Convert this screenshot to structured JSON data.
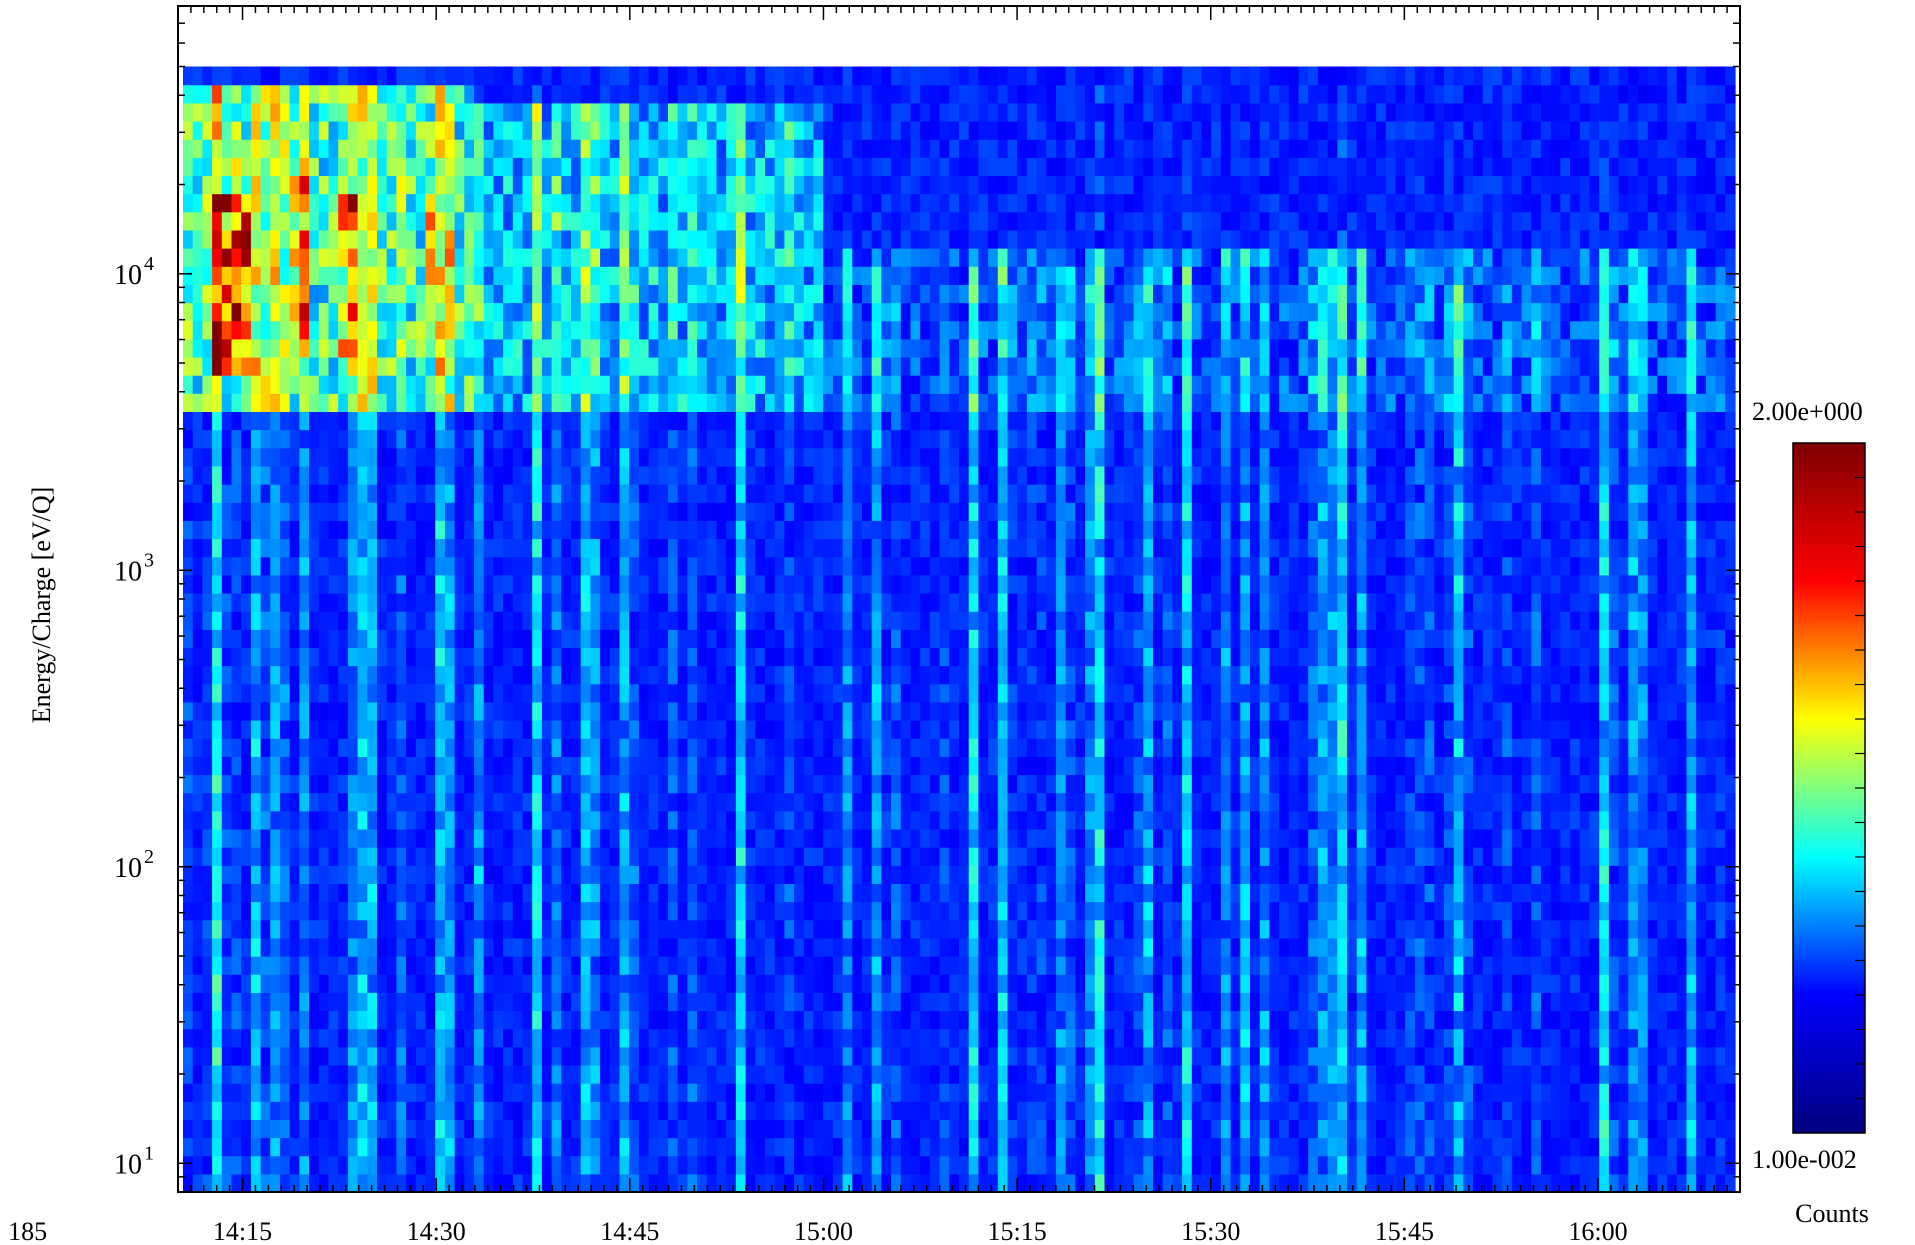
{
  "chart_data": {
    "type": "heatmap",
    "title": "",
    "ylabel": "Energy/Charge [eV/Q]",
    "xlabel_prefix": "Y: 185",
    "y_scale": "log",
    "y_range": [
      8,
      80000
    ],
    "y_data_range": [
      8,
      50000
    ],
    "y_ticks": [
      {
        "base": "10",
        "exp": "1",
        "value": 10
      },
      {
        "base": "10",
        "exp": "2",
        "value": 100
      },
      {
        "base": "10",
        "exp": "3",
        "value": 1000
      },
      {
        "base": "10",
        "exp": "4",
        "value": 10000
      }
    ],
    "x_range_minutes": [
      850,
      971
    ],
    "x_ticks": [
      {
        "label": "14:15",
        "minutes": 855
      },
      {
        "label": "14:30",
        "minutes": 870
      },
      {
        "label": "14:45",
        "minutes": 885
      },
      {
        "label": "15:00",
        "minutes": 900
      },
      {
        "label": "15:15",
        "minutes": 915
      },
      {
        "label": "15:30",
        "minutes": 930
      },
      {
        "label": "15:45",
        "minutes": 945
      },
      {
        "label": "16:00",
        "minutes": 960
      }
    ],
    "colorbar": {
      "label": "Counts",
      "max_label": "2.00e+000",
      "min_label": "1.00e-002",
      "max": 2.0,
      "min": 0.01,
      "colormap": "jet",
      "stops": [
        "#00007f",
        "#0000ff",
        "#00ffff",
        "#ffff00",
        "#ff0000",
        "#7f0000"
      ]
    },
    "intensity_features": [
      {
        "note": "hotspot",
        "minute_start": 852,
        "minute_end": 855,
        "e_low": 4500,
        "e_high": 18000,
        "level": 0.92
      },
      {
        "note": "hotspot",
        "minute_start": 858,
        "minute_end": 860,
        "e_low": 5000,
        "e_high": 20000,
        "level": 0.8
      },
      {
        "note": "hotspot",
        "minute_start": 862,
        "minute_end": 863.5,
        "e_low": 5000,
        "e_high": 18000,
        "level": 0.78
      },
      {
        "note": "hotspot",
        "minute_start": 869,
        "minute_end": 870,
        "e_low": 6000,
        "e_high": 18000,
        "level": 0.75
      },
      {
        "note": "enhanced band",
        "minute_start": 850,
        "minute_end": 873,
        "e_low": 3500,
        "e_high": 45000,
        "level": 0.55
      },
      {
        "note": "enhanced band",
        "minute_start": 873,
        "minute_end": 900,
        "e_low": 3500,
        "e_high": 40000,
        "level": 0.42
      },
      {
        "note": "enhanced band",
        "minute_start": 900,
        "minute_end": 971,
        "e_low": 3500,
        "e_high": 12000,
        "level": 0.3
      },
      {
        "note": "background",
        "minute_start": 850,
        "minute_end": 971,
        "e_low": 8,
        "e_high": 3500,
        "level": 0.2
      }
    ]
  }
}
